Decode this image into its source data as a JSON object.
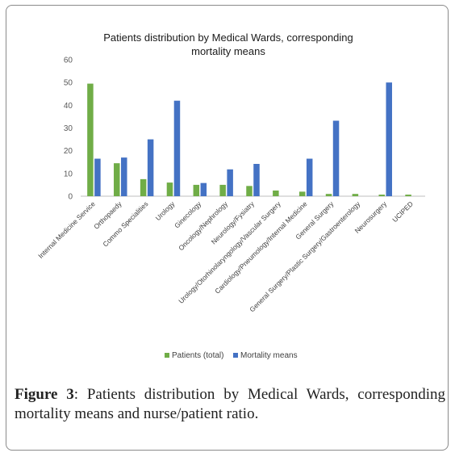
{
  "chart_data": {
    "type": "bar",
    "title": "Patients distribution by Medical Wards, corresponding mortality means",
    "title_lines": [
      "Patients distribution by Medical Wards, corresponding",
      "mortality means"
    ],
    "categories": [
      "Internal Medicine Service",
      "Orthopaedy",
      "Commo Specialities",
      "Urology",
      "Ginecology",
      "Oncology/Nephrology",
      "Neurology/Fysiatry",
      "Urology/Otorhinolaryngology/Vascular Surgery",
      "Cardiology/Pneumology/Internal Medicine",
      "General Surgery",
      "General Surgery/Plastic Surgery/Gastroenterology",
      "Neurosurgery",
      "UCIPED"
    ],
    "series": [
      {
        "name": "Patients (total)",
        "color": "#70ad47",
        "values": [
          49.5,
          14.5,
          7.5,
          6,
          5,
          5,
          4.5,
          2.5,
          2,
          1,
          1,
          0.7,
          0.7
        ]
      },
      {
        "name": "Mortality means",
        "color": "#4472c4",
        "values": [
          16.5,
          17,
          25,
          42,
          5.8,
          11.8,
          14.2,
          0,
          16.5,
          33.2,
          0,
          50,
          0
        ]
      }
    ],
    "yticks": [
      0,
      10,
      20,
      30,
      40,
      50,
      60
    ],
    "ylim": [
      0,
      60
    ],
    "xlabel": "",
    "ylabel": "",
    "grid": false,
    "legend_position": "bottom"
  },
  "caption": {
    "label": "Figure 3",
    "text": ": Patients distribution by Medical Wards, corresponding mortality means and nurse/patient ratio."
  }
}
